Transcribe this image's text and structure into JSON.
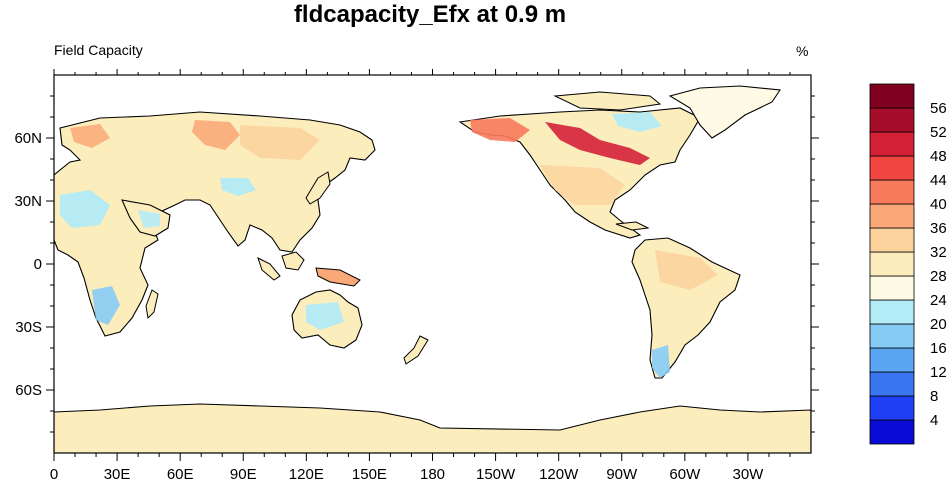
{
  "title": "fldcapacity_Efx at 0.9 m",
  "subtitle": "Field Capacity",
  "units": "%",
  "map": {
    "projection": "cylindrical-equidistant",
    "lon_range": [
      0,
      360
    ],
    "lat_range": [
      -90,
      90
    ],
    "xticks": [
      {
        "lon": 0,
        "label": "0"
      },
      {
        "lon": 30,
        "label": "30E"
      },
      {
        "lon": 60,
        "label": "60E"
      },
      {
        "lon": 90,
        "label": "90E"
      },
      {
        "lon": 120,
        "label": "120E"
      },
      {
        "lon": 150,
        "label": "150E"
      },
      {
        "lon": 180,
        "label": "180"
      },
      {
        "lon": 210,
        "label": "150W"
      },
      {
        "lon": 240,
        "label": "120W"
      },
      {
        "lon": 270,
        "label": "90W"
      },
      {
        "lon": 300,
        "label": "60W"
      },
      {
        "lon": 330,
        "label": "30W"
      }
    ],
    "yticks": [
      {
        "lat": 60,
        "label": "60N"
      },
      {
        "lat": 30,
        "label": "30N"
      },
      {
        "lat": 0,
        "label": "0"
      },
      {
        "lat": -30,
        "label": "30S"
      },
      {
        "lat": -60,
        "label": "60S"
      }
    ]
  },
  "colorbar": {
    "levels": [
      4,
      8,
      12,
      16,
      20,
      24,
      28,
      32,
      36,
      40,
      44,
      48,
      52,
      56
    ],
    "colors": [
      "#0a0ad6",
      "#1f3ff5",
      "#3a75f0",
      "#5aa5f2",
      "#86cbf5",
      "#b3ebf7",
      "#fefae6",
      "#fcedbd",
      "#fcd39d",
      "#fba878",
      "#f77a5c",
      "#f14542",
      "#d42138",
      "#a40e2a",
      "#80001f"
    ]
  },
  "fill_colors": {
    "base": "#fcedbd",
    "ocean": "#ffffff",
    "coast": "#000000"
  }
}
